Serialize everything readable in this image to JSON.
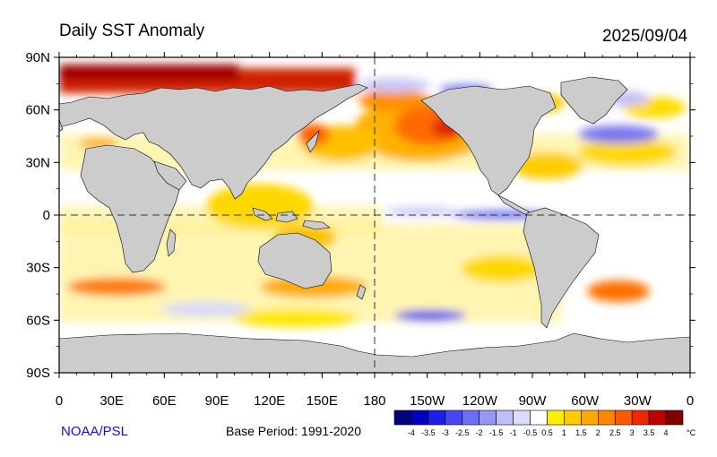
{
  "title": "Daily SST Anomaly",
  "date": "2025/09/04",
  "credit": "NOAA/PSL",
  "base_period": "Base Period: 1991-2020",
  "axes": {
    "lat_labels": [
      "90N",
      "60N",
      "30N",
      "0",
      "30S",
      "60S",
      "90S"
    ],
    "lon_labels": [
      "0",
      "30E",
      "60E",
      "90E",
      "120E",
      "150E",
      "180",
      "150W",
      "120W",
      "90W",
      "60W",
      "30W",
      "0"
    ]
  },
  "colorbar": {
    "unit": "°C",
    "tick_labels": [
      "-4",
      "-3.5",
      "-3",
      "-2.5",
      "-2",
      "-1.5",
      "-1",
      "-0.5",
      "0.5",
      "1",
      "1.5",
      "2",
      "2.5",
      "3",
      "3.5",
      "4"
    ],
    "colors": [
      "#00007a",
      "#0000c0",
      "#1e1ee6",
      "#4646f5",
      "#6e6ef5",
      "#9696f5",
      "#bebef8",
      "#dcdcfa",
      "#ffffff",
      "#ffee00",
      "#ffcc00",
      "#ffaa00",
      "#ff8400",
      "#ff5a00",
      "#f02800",
      "#c00000",
      "#800000"
    ]
  },
  "colors": {
    "land": "#cccccc",
    "ocean_neutral": "#ffffff",
    "credit_text": "#1010e0"
  }
}
